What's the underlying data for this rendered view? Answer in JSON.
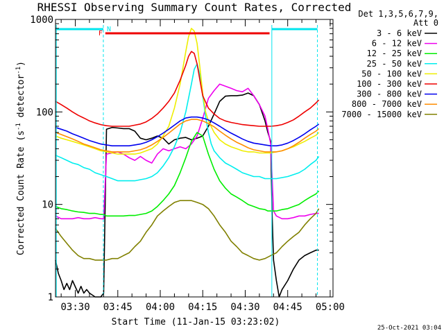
{
  "chart_data": {
    "type": "line",
    "title": "RHESSI Observing Summary Count Rates, Corrected",
    "xlabel": "Start Time (11-Jan-15 03:23:02)",
    "ylabel_main": "Corrected Count Rate (s",
    "ylabel_sup1": "-1",
    "ylabel_mid": " detector",
    "ylabel_sup2": "-1",
    "ylabel_end": ")",
    "ylim": [
      1,
      1000
    ],
    "y_scale": "log",
    "x_range_minutes": [
      0,
      98
    ],
    "x_ticks": [
      {
        "label": "03:30",
        "t": 7
      },
      {
        "label": "03:45",
        "t": 22
      },
      {
        "label": "04:00",
        "t": 37
      },
      {
        "label": "04:15",
        "t": 52
      },
      {
        "label": "04:30",
        "t": 67
      },
      {
        "label": "04:45",
        "t": 82
      },
      {
        "label": "05:00",
        "t": 97
      }
    ],
    "y_ticks": [
      {
        "label": "1",
        "v": 1
      },
      {
        "label": "10",
        "v": 10
      },
      {
        "label": "100",
        "v": 100
      },
      {
        "label": "1000",
        "v": 1000
      }
    ],
    "legend_header": [
      "Det 1,3,5,6,7,9,",
      "Att 0"
    ],
    "footer": "25-Oct-2021 03:04",
    "flags": {
      "night_label": "N",
      "flare_label": "F",
      "night_color": "#00e5ee",
      "flare_color": "#ee0000",
      "night_segments": [
        [
          0,
          16.9
        ],
        [
          76.4,
          92.5
        ]
      ],
      "flare_segment": [
        17.6,
        75.6
      ],
      "dashed_times": [
        16.9,
        92.5
      ],
      "solid_times": [
        0.3,
        76.4
      ]
    },
    "series": [
      {
        "name": "3 - 6 keV",
        "color": "#000000",
        "x": [
          0,
          1,
          2,
          3,
          4,
          5,
          6,
          8,
          9,
          10,
          11,
          12,
          14,
          16,
          17,
          18,
          20,
          22,
          24,
          26,
          28,
          30,
          32,
          34,
          36,
          38,
          40,
          42,
          44,
          46,
          48,
          50,
          52,
          54,
          56,
          58,
          60,
          62,
          64,
          66,
          68,
          70,
          72,
          74,
          75,
          76,
          76.5,
          77,
          78,
          79,
          80,
          82,
          84,
          86,
          88,
          90,
          92,
          93
        ],
        "y": [
          2.5,
          1.8,
          1.5,
          1.2,
          1.4,
          1.2,
          1.5,
          1.1,
          1.3,
          1.1,
          1.2,
          1.1,
          1.0,
          1.0,
          1.1,
          65,
          68,
          67,
          66,
          66,
          62,
          52,
          50,
          52,
          55,
          52,
          45,
          50,
          52,
          53,
          50,
          52,
          55,
          70,
          95,
          130,
          148,
          150,
          150,
          152,
          160,
          150,
          120,
          80,
          60,
          48,
          8,
          2.5,
          1.5,
          1.0,
          1.2,
          1.5,
          2.0,
          2.5,
          2.8,
          3.0,
          3.2,
          3.2
        ]
      },
      {
        "name": "6 - 12 keV",
        "color": "#ee00ee",
        "x": [
          0,
          2,
          4,
          6,
          8,
          10,
          12,
          14,
          16,
          17,
          18,
          20,
          22,
          24,
          26,
          28,
          30,
          32,
          34,
          36,
          38,
          40,
          42,
          44,
          46,
          48,
          50,
          52,
          54,
          56,
          58,
          60,
          62,
          64,
          66,
          68,
          70,
          72,
          74,
          75,
          76,
          76.5,
          77,
          78,
          80,
          82,
          84,
          86,
          88,
          90,
          92,
          93
        ],
        "y": [
          7.5,
          7.0,
          7.0,
          7.0,
          7.2,
          7.0,
          7.0,
          7.2,
          7.0,
          7.0,
          35,
          36,
          37,
          35,
          32,
          30,
          33,
          30,
          28,
          35,
          40,
          38,
          40,
          42,
          40,
          45,
          55,
          85,
          140,
          170,
          200,
          190,
          180,
          170,
          165,
          180,
          150,
          120,
          90,
          65,
          45,
          20,
          8.5,
          7.5,
          7.0,
          7.0,
          7.2,
          7.5,
          7.5,
          7.8,
          8.0,
          8.0
        ]
      },
      {
        "name": "12 - 25 keV",
        "color": "#00ee00",
        "x": [
          0,
          2,
          4,
          6,
          8,
          10,
          12,
          14,
          16,
          17,
          18,
          20,
          22,
          24,
          26,
          28,
          30,
          32,
          34,
          36,
          38,
          40,
          42,
          44,
          46,
          48,
          50,
          52,
          54,
          56,
          58,
          60,
          62,
          64,
          66,
          68,
          70,
          72,
          74,
          75,
          76,
          76.5,
          77,
          78,
          80,
          82,
          84,
          86,
          88,
          90,
          92,
          93
        ],
        "y": [
          9.5,
          9.0,
          8.8,
          8.5,
          8.3,
          8.2,
          8.0,
          8.0,
          7.8,
          7.8,
          7.5,
          7.5,
          7.5,
          7.5,
          7.6,
          7.6,
          7.8,
          8.0,
          8.5,
          9.5,
          11,
          13,
          16,
          22,
          32,
          48,
          60,
          55,
          35,
          24,
          18,
          15,
          13,
          12,
          11,
          10,
          9.5,
          9.0,
          8.8,
          8.5,
          8.5,
          8.5,
          8.5,
          8.5,
          8.8,
          9.0,
          9.5,
          10,
          11,
          12,
          13,
          14
        ]
      },
      {
        "name": "25 - 50 keV",
        "color": "#00eeee",
        "x": [
          0,
          2,
          4,
          6,
          8,
          10,
          12,
          14,
          16,
          18,
          20,
          22,
          24,
          26,
          28,
          30,
          32,
          34,
          36,
          38,
          40,
          42,
          44,
          46,
          48,
          49,
          50,
          51,
          52,
          53,
          54,
          55,
          56,
          58,
          60,
          62,
          64,
          66,
          68,
          70,
          72,
          74,
          76,
          78,
          80,
          82,
          84,
          86,
          88,
          90,
          92,
          93
        ],
        "y": [
          34,
          32,
          30,
          28,
          27,
          25,
          24,
          22,
          21,
          20,
          19,
          18,
          18,
          18,
          18,
          18.5,
          19,
          20,
          22,
          26,
          32,
          42,
          60,
          100,
          200,
          290,
          330,
          250,
          150,
          90,
          60,
          45,
          38,
          32,
          28,
          26,
          24,
          22,
          21,
          20,
          20,
          19,
          19,
          19,
          19.5,
          20,
          21,
          22,
          24,
          27,
          30,
          33
        ]
      },
      {
        "name": "50 - 100 keV",
        "color": "#eeee00",
        "x": [
          0,
          2,
          4,
          6,
          8,
          10,
          12,
          14,
          16,
          18,
          20,
          22,
          24,
          26,
          28,
          30,
          32,
          34,
          36,
          38,
          40,
          42,
          44,
          46,
          47,
          48,
          49,
          50,
          51,
          52,
          53,
          54,
          56,
          58,
          60,
          62,
          64,
          66,
          68,
          70,
          72,
          74,
          76,
          78,
          80,
          82,
          84,
          86,
          88,
          90,
          92,
          93
        ],
        "y": [
          55,
          52,
          50,
          48,
          46,
          44,
          42,
          40,
          38,
          37,
          36,
          35,
          35,
          35,
          35,
          36,
          38,
          40,
          45,
          55,
          70,
          110,
          200,
          450,
          650,
          800,
          750,
          550,
          300,
          160,
          100,
          80,
          60,
          50,
          45,
          42,
          40,
          38,
          37,
          37,
          36,
          36,
          36,
          37,
          38,
          40,
          42,
          45,
          48,
          52,
          56,
          60
        ]
      },
      {
        "name": "100 - 300 keV",
        "color": "#ee0000",
        "x": [
          0,
          2,
          4,
          6,
          8,
          10,
          12,
          14,
          16,
          18,
          20,
          22,
          24,
          26,
          28,
          30,
          32,
          34,
          36,
          38,
          40,
          42,
          44,
          46,
          47,
          48,
          49,
          50,
          51,
          52,
          54,
          56,
          58,
          60,
          62,
          64,
          66,
          68,
          70,
          72,
          74,
          76,
          78,
          80,
          82,
          84,
          86,
          88,
          90,
          92,
          93
        ],
        "y": [
          130,
          120,
          110,
          100,
          92,
          86,
          80,
          76,
          73,
          71,
          70,
          70,
          70,
          70,
          72,
          74,
          78,
          85,
          95,
          110,
          130,
          160,
          220,
          320,
          400,
          450,
          430,
          330,
          220,
          150,
          110,
          95,
          85,
          80,
          77,
          75,
          73,
          72,
          71,
          70,
          70,
          70,
          71,
          73,
          77,
          82,
          90,
          100,
          110,
          125,
          135
        ]
      },
      {
        "name": "300 - 800 keV",
        "color": "#0000ee",
        "x": [
          0,
          2,
          4,
          6,
          8,
          10,
          12,
          14,
          16,
          18,
          20,
          22,
          24,
          26,
          28,
          30,
          32,
          34,
          36,
          38,
          40,
          42,
          44,
          46,
          48,
          50,
          52,
          54,
          56,
          58,
          60,
          62,
          64,
          66,
          68,
          70,
          72,
          74,
          76,
          78,
          80,
          82,
          84,
          86,
          88,
          90,
          92,
          93
        ],
        "y": [
          68,
          65,
          62,
          58,
          55,
          52,
          49,
          47,
          45,
          44,
          43,
          43,
          43,
          43,
          44,
          45,
          47,
          50,
          54,
          59,
          65,
          72,
          80,
          86,
          88,
          88,
          86,
          82,
          76,
          70,
          64,
          59,
          55,
          51,
          48,
          46,
          45,
          44,
          43,
          43,
          44,
          46,
          49,
          53,
          58,
          64,
          70,
          74
        ]
      },
      {
        "name": "800 - 7000 keV",
        "color": "#ff8c00",
        "x": [
          0,
          2,
          4,
          6,
          8,
          10,
          12,
          14,
          16,
          18,
          20,
          22,
          24,
          26,
          28,
          30,
          32,
          34,
          36,
          38,
          40,
          42,
          44,
          46,
          48,
          50,
          52,
          54,
          56,
          58,
          60,
          62,
          64,
          66,
          68,
          70,
          72,
          74,
          76,
          78,
          80,
          82,
          84,
          86,
          88,
          90,
          92,
          93
        ],
        "y": [
          60,
          57,
          54,
          51,
          48,
          45,
          43,
          41,
          39,
          38,
          37,
          37,
          37,
          37,
          38,
          39,
          41,
          44,
          48,
          53,
          59,
          66,
          74,
          80,
          83,
          83,
          80,
          75,
          69,
          62,
          56,
          51,
          47,
          44,
          41,
          39,
          38,
          37,
          37,
          37,
          38,
          40,
          43,
          47,
          52,
          57,
          62,
          66
        ]
      },
      {
        "name": "7000 - 15000 keV",
        "color": "#808000",
        "x": [
          0,
          2,
          4,
          6,
          8,
          10,
          12,
          14,
          16,
          18,
          20,
          22,
          24,
          26,
          28,
          30,
          32,
          34,
          36,
          38,
          40,
          42,
          44,
          46,
          48,
          50,
          52,
          54,
          56,
          58,
          60,
          62,
          64,
          66,
          68,
          70,
          72,
          74,
          76,
          78,
          80,
          82,
          84,
          86,
          88,
          90,
          92,
          93
        ],
        "y": [
          5.5,
          4.5,
          3.8,
          3.2,
          2.8,
          2.6,
          2.6,
          2.5,
          2.5,
          2.5,
          2.6,
          2.6,
          2.8,
          3.0,
          3.5,
          4.0,
          5.0,
          6.0,
          7.5,
          8.5,
          9.5,
          10.5,
          11,
          11,
          11,
          10.5,
          10,
          9.0,
          7.5,
          6.0,
          5.0,
          4.0,
          3.5,
          3.0,
          2.8,
          2.6,
          2.5,
          2.6,
          2.8,
          3.0,
          3.5,
          4.0,
          4.5,
          5.0,
          6.0,
          7.0,
          8.0,
          9.0
        ]
      }
    ]
  }
}
